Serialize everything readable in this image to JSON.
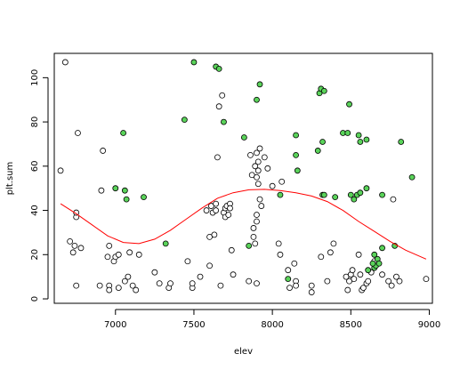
{
  "chart_data": {
    "type": "scatter",
    "xlabel": "elev",
    "ylabel": "plt.sum",
    "xlim": [
      6610,
      9020
    ],
    "ylim": [
      -2,
      111
    ],
    "xticks": [
      7000,
      7500,
      8000,
      8500,
      9000
    ],
    "yticks": [
      0,
      20,
      40,
      60,
      80,
      100
    ],
    "colors": {
      "open_fill": "#ffffff",
      "green_fill": "#5ad35a",
      "outline": "#000000",
      "fit_line": "#ff0000",
      "frame": "#000000"
    },
    "series": [
      {
        "marker": "open-circle",
        "points": [
          [
            6650,
            58
          ],
          [
            6680,
            107
          ],
          [
            6710,
            26
          ],
          [
            6730,
            21
          ],
          [
            6740,
            24
          ],
          [
            6750,
            37
          ],
          [
            6750,
            39
          ],
          [
            6760,
            75
          ],
          [
            6750,
            6
          ],
          [
            6780,
            23
          ],
          [
            6900,
            6
          ],
          [
            6910,
            49
          ],
          [
            6920,
            67
          ],
          [
            6950,
            19
          ],
          [
            6960,
            24
          ],
          [
            6960,
            6
          ],
          [
            6960,
            4
          ],
          [
            6990,
            17
          ],
          [
            7000,
            19
          ],
          [
            7020,
            20
          ],
          [
            7020,
            5
          ],
          [
            7060,
            8
          ],
          [
            7080,
            10
          ],
          [
            7090,
            21
          ],
          [
            7110,
            6
          ],
          [
            7130,
            4
          ],
          [
            7150,
            20
          ],
          [
            7250,
            12
          ],
          [
            7280,
            7
          ],
          [
            7340,
            5
          ],
          [
            7350,
            7
          ],
          [
            7460,
            17
          ],
          [
            7490,
            5
          ],
          [
            7490,
            7
          ],
          [
            7540,
            10
          ],
          [
            7580,
            40
          ],
          [
            7600,
            15
          ],
          [
            7600,
            28
          ],
          [
            7610,
            42
          ],
          [
            7620,
            39
          ],
          [
            7630,
            29
          ],
          [
            7640,
            43
          ],
          [
            7640,
            40
          ],
          [
            7650,
            64
          ],
          [
            7660,
            87
          ],
          [
            7670,
            6
          ],
          [
            7680,
            92
          ],
          [
            7690,
            39
          ],
          [
            7700,
            41
          ],
          [
            7700,
            37
          ],
          [
            7710,
            42
          ],
          [
            7720,
            38
          ],
          [
            7730,
            43
          ],
          [
            7730,
            41
          ],
          [
            7740,
            22
          ],
          [
            7750,
            11
          ],
          [
            7850,
            8
          ],
          [
            7860,
            65
          ],
          [
            7870,
            56
          ],
          [
            7880,
            32
          ],
          [
            7880,
            28
          ],
          [
            7890,
            25
          ],
          [
            7890,
            60
          ],
          [
            7900,
            66
          ],
          [
            7900,
            55
          ],
          [
            7900,
            38
          ],
          [
            7900,
            35
          ],
          [
            7900,
            7
          ],
          [
            7910,
            62
          ],
          [
            7910,
            58
          ],
          [
            7910,
            52
          ],
          [
            7920,
            68
          ],
          [
            7920,
            45
          ],
          [
            7930,
            42
          ],
          [
            7950,
            64
          ],
          [
            7970,
            59
          ],
          [
            8000,
            51
          ],
          [
            8040,
            25
          ],
          [
            8050,
            20
          ],
          [
            8060,
            53
          ],
          [
            8100,
            13
          ],
          [
            8110,
            5
          ],
          [
            8140,
            16
          ],
          [
            8150,
            8
          ],
          [
            8150,
            6
          ],
          [
            8250,
            6
          ],
          [
            8250,
            3
          ],
          [
            8310,
            19
          ],
          [
            8350,
            8
          ],
          [
            8370,
            21
          ],
          [
            8390,
            25
          ],
          [
            8470,
            10
          ],
          [
            8480,
            4
          ],
          [
            8490,
            8
          ],
          [
            8500,
            11
          ],
          [
            8510,
            13
          ],
          [
            8520,
            9
          ],
          [
            8550,
            20
          ],
          [
            8560,
            11
          ],
          [
            8570,
            4
          ],
          [
            8580,
            5
          ],
          [
            8600,
            7
          ],
          [
            8610,
            8
          ],
          [
            8630,
            12
          ],
          [
            8650,
            17
          ],
          [
            8700,
            11
          ],
          [
            8740,
            8
          ],
          [
            8760,
            6
          ],
          [
            8770,
            45
          ],
          [
            8790,
            10
          ],
          [
            8810,
            8
          ],
          [
            8980,
            9
          ]
        ]
      },
      {
        "marker": "green-circle",
        "points": [
          [
            7000,
            50
          ],
          [
            7050,
            75
          ],
          [
            7060,
            49
          ],
          [
            7070,
            45
          ],
          [
            7180,
            46
          ],
          [
            7320,
            25
          ],
          [
            7440,
            81
          ],
          [
            7500,
            107
          ],
          [
            7640,
            105
          ],
          [
            7660,
            104
          ],
          [
            7690,
            80
          ],
          [
            7820,
            73
          ],
          [
            7900,
            90
          ],
          [
            7920,
            97
          ],
          [
            7850,
            24
          ],
          [
            8050,
            47
          ],
          [
            8100,
            9
          ],
          [
            8150,
            74
          ],
          [
            8150,
            65
          ],
          [
            8160,
            58
          ],
          [
            8290,
            67
          ],
          [
            8300,
            93
          ],
          [
            8310,
            95
          ],
          [
            8320,
            71
          ],
          [
            8320,
            47
          ],
          [
            8330,
            47
          ],
          [
            8330,
            94
          ],
          [
            8400,
            46
          ],
          [
            8450,
            75
          ],
          [
            8480,
            75
          ],
          [
            8490,
            88
          ],
          [
            8500,
            47
          ],
          [
            8520,
            45
          ],
          [
            8540,
            47
          ],
          [
            8550,
            74
          ],
          [
            8560,
            48
          ],
          [
            8560,
            71
          ],
          [
            8600,
            50
          ],
          [
            8600,
            72
          ],
          [
            8650,
            20
          ],
          [
            8650,
            14
          ],
          [
            8660,
            15
          ],
          [
            8670,
            18
          ],
          [
            8680,
            16
          ],
          [
            8700,
            23
          ],
          [
            8700,
            47
          ],
          [
            8780,
            24
          ],
          [
            8820,
            71
          ],
          [
            8890,
            55
          ],
          [
            8610,
            13
          ],
          [
            8640,
            16
          ]
        ]
      }
    ],
    "fit_curve": [
      [
        6650,
        43
      ],
      [
        6750,
        38.5
      ],
      [
        6850,
        33.5
      ],
      [
        6950,
        28.5
      ],
      [
        7050,
        25.5
      ],
      [
        7150,
        25
      ],
      [
        7250,
        27
      ],
      [
        7350,
        31
      ],
      [
        7450,
        36
      ],
      [
        7550,
        41
      ],
      [
        7650,
        45.5
      ],
      [
        7750,
        48
      ],
      [
        7850,
        49.3
      ],
      [
        7950,
        49.5
      ],
      [
        8050,
        49
      ],
      [
        8150,
        48
      ],
      [
        8250,
        46.5
      ],
      [
        8350,
        44
      ],
      [
        8450,
        40
      ],
      [
        8550,
        35
      ],
      [
        8650,
        30.5
      ],
      [
        8750,
        26
      ],
      [
        8850,
        22
      ],
      [
        8980,
        18
      ]
    ]
  }
}
